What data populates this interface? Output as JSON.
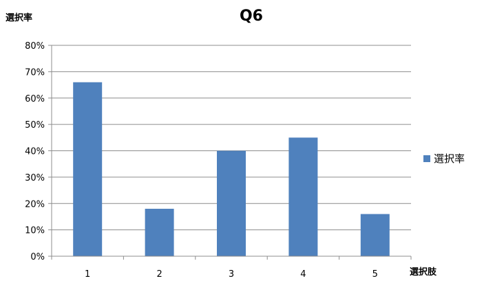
{
  "chart_data": {
    "type": "bar",
    "title": "Q6",
    "ylabel": "選択率",
    "xlabel": "選択肢",
    "categories": [
      "1",
      "2",
      "3",
      "4",
      "5"
    ],
    "series": [
      {
        "name": "選択率",
        "values": [
          0.66,
          0.18,
          0.4,
          0.45,
          0.16
        ],
        "color": "#4F81BD"
      }
    ],
    "ylim": [
      0,
      0.8
    ],
    "yticks": [
      0,
      0.1,
      0.2,
      0.3,
      0.4,
      0.5,
      0.6,
      0.7,
      0.8
    ],
    "ytick_labels": [
      "0%",
      "10%",
      "20%",
      "30%",
      "40%",
      "50%",
      "60%",
      "70%",
      "80%"
    ],
    "grid": true,
    "legend_position": "right"
  }
}
